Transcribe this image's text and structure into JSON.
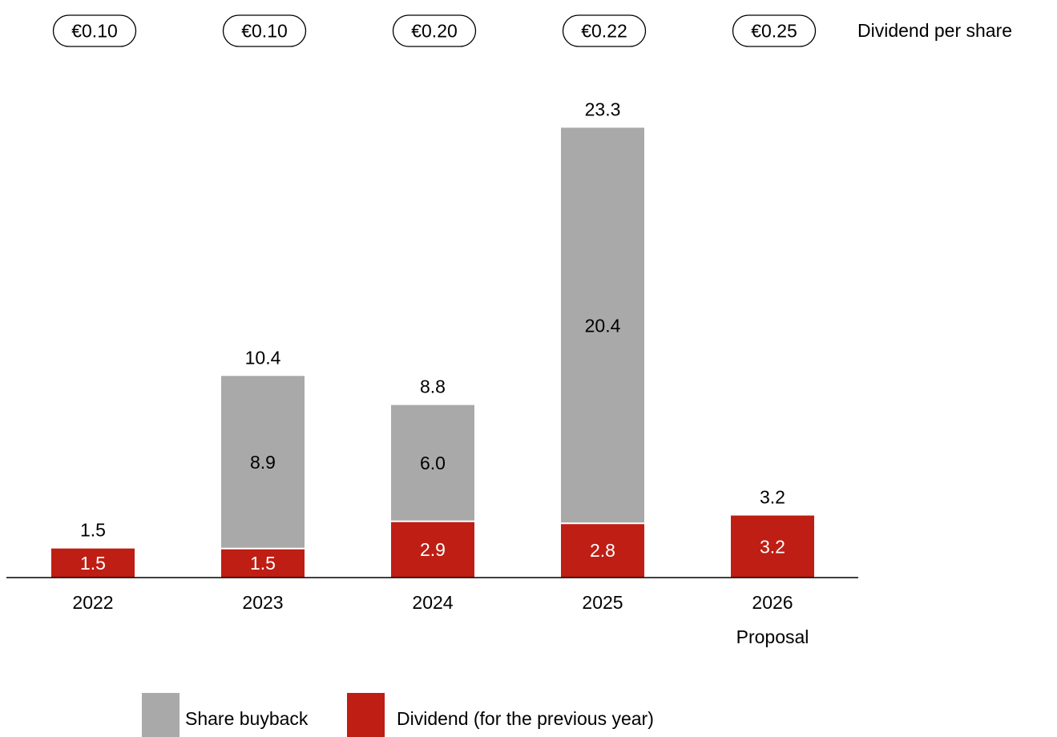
{
  "chart_data": {
    "type": "bar",
    "stacked": true,
    "categories": [
      "2022",
      "2023",
      "2024",
      "2025",
      "2026"
    ],
    "category_sublabels": [
      "",
      "",
      "",
      "",
      "Proposal"
    ],
    "series": [
      {
        "name": "Dividend (for the previous year)",
        "color": "#BE1E14",
        "values": [
          1.5,
          1.5,
          2.9,
          2.8,
          3.2
        ]
      },
      {
        "name": "Share buyback",
        "color": "#A9A9A9",
        "values": [
          0,
          8.9,
          6.0,
          20.4,
          0
        ]
      }
    ],
    "totals": [
      "1.5",
      "10.4",
      "8.8",
      "23.3",
      "3.2"
    ],
    "segment_labels": {
      "dividend": [
        "1.5",
        "1.5",
        "2.9",
        "2.8",
        "3.2"
      ],
      "buyback": [
        "",
        "8.9",
        "6.0",
        "20.4",
        ""
      ]
    },
    "dividend_per_share": [
      "€0.10",
      "€0.10",
      "€0.20",
      "€0.22",
      "€0.25"
    ],
    "dividend_per_share_label": "Dividend per share",
    "legend": [
      {
        "label": "Share buyback",
        "color": "#A9A9A9"
      },
      {
        "label": "Dividend (for the previous year)",
        "color": "#BE1E14"
      }
    ],
    "legend_position": "bottom-center",
    "grid": false,
    "ylim": [
      0,
      23.3
    ]
  }
}
